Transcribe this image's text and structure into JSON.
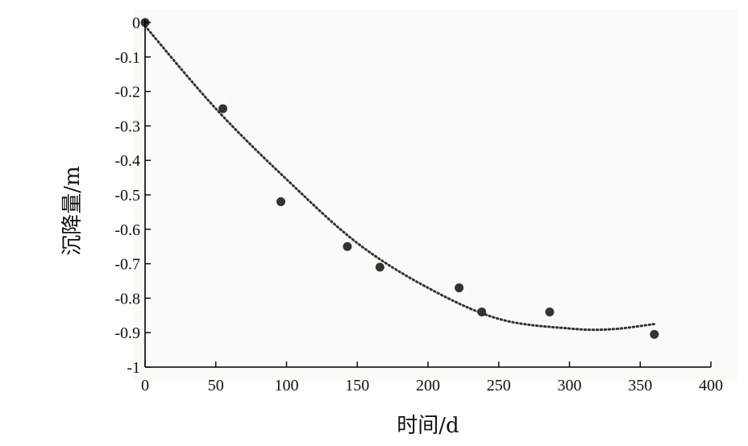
{
  "chart_data": {
    "type": "scatter",
    "xlabel": "时间/d",
    "ylabel": "沉降量/m",
    "xlim": [
      0,
      400
    ],
    "ylim": [
      -1,
      0
    ],
    "xticks": [
      "0",
      "50",
      "100",
      "150",
      "200",
      "250",
      "300",
      "350",
      "400"
    ],
    "yticks": [
      "0",
      "-0.1",
      "-0.2",
      "-0.3",
      "-0.4",
      "-0.5",
      "-0.6",
      "-0.7",
      "-0.8",
      "-0.9",
      "-1"
    ],
    "grid": false,
    "series": [
      {
        "kind": "scatter",
        "x": [
          0,
          55,
          96,
          143,
          166,
          222,
          238,
          286,
          360
        ],
        "y": [
          0,
          -0.25,
          -0.52,
          -0.65,
          -0.71,
          -0.77,
          -0.84,
          -0.84,
          -0.905
        ]
      },
      {
        "kind": "dotted-fit-line",
        "x": [
          0,
          50,
          100,
          150,
          200,
          250,
          300,
          330,
          360
        ],
        "y": [
          -0.01,
          -0.25,
          -0.455,
          -0.64,
          -0.77,
          -0.86,
          -0.888,
          -0.89,
          -0.875
        ]
      }
    ],
    "colors": {
      "points": "#333333",
      "fit_line": "#333333",
      "axes": "#000000",
      "plot_bg": "#fafaf7"
    }
  }
}
